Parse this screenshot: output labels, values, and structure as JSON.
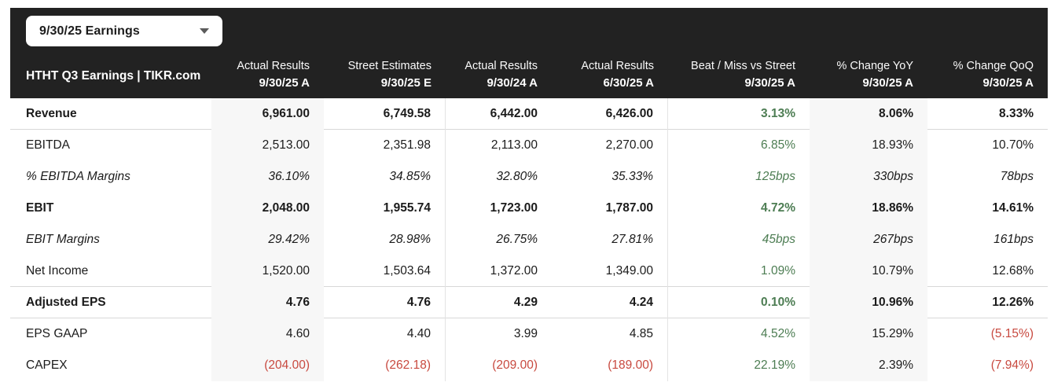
{
  "dropdown": {
    "label": "9/30/25 Earnings"
  },
  "header": {
    "title": "HTHT Q3 Earnings | TIKR.com",
    "columns": [
      {
        "line1": "Actual Results",
        "line2": "9/30/25 A"
      },
      {
        "line1": "Street Estimates",
        "line2": "9/30/25 E"
      },
      {
        "line1": "Actual Results",
        "line2": "9/30/24 A"
      },
      {
        "line1": "Actual Results",
        "line2": "6/30/25 A"
      },
      {
        "line1": "Beat / Miss vs Street",
        "line2": "9/30/25 A"
      },
      {
        "line1": "% Change YoY",
        "line2": "9/30/25 A"
      },
      {
        "line1": "% Change QoQ",
        "line2": "9/30/25 A"
      }
    ]
  },
  "colors": {
    "header_bg": "#222222",
    "stripe": "#f7f7f7",
    "beat_green": "#4d7d53",
    "negative_red": "#c8493f"
  },
  "table": {
    "rows": [
      {
        "label": "Revenue",
        "style": "bold",
        "values": [
          "6,961.00",
          "6,749.58",
          "6,442.00",
          "6,426.00",
          "3.13%",
          "8.06%",
          "8.33%"
        ]
      },
      {
        "label": "EBITDA",
        "style": "normal",
        "values": [
          "2,513.00",
          "2,351.98",
          "2,113.00",
          "2,270.00",
          "6.85%",
          "18.93%",
          "10.70%"
        ]
      },
      {
        "label": "% EBITDA Margins",
        "style": "italic",
        "values": [
          "36.10%",
          "34.85%",
          "32.80%",
          "35.33%",
          "125bps",
          "330bps",
          "78bps"
        ]
      },
      {
        "label": "EBIT",
        "style": "bold",
        "values": [
          "2,048.00",
          "1,955.74",
          "1,723.00",
          "1,787.00",
          "4.72%",
          "18.86%",
          "14.61%"
        ]
      },
      {
        "label": "EBIT Margins",
        "style": "italic",
        "values": [
          "29.42%",
          "28.98%",
          "26.75%",
          "27.81%",
          "45bps",
          "267bps",
          "161bps"
        ]
      },
      {
        "label": "Net Income",
        "style": "normal",
        "values": [
          "1,520.00",
          "1,503.64",
          "1,372.00",
          "1,349.00",
          "1.09%",
          "10.79%",
          "12.68%"
        ]
      },
      {
        "label": "Adjusted EPS",
        "style": "bold",
        "values": [
          "4.76",
          "4.76",
          "4.29",
          "4.24",
          "0.10%",
          "10.96%",
          "12.26%"
        ]
      },
      {
        "label": "EPS GAAP",
        "style": "normal",
        "values": [
          "4.60",
          "4.40",
          "3.99",
          "4.85",
          "4.52%",
          "15.29%",
          "(5.15%)"
        ]
      },
      {
        "label": "CAPEX",
        "style": "normal",
        "values": [
          "(204.00)",
          "(262.18)",
          "(209.00)",
          "(189.00)",
          "22.19%",
          "2.39%",
          "(7.94%)"
        ]
      }
    ]
  }
}
